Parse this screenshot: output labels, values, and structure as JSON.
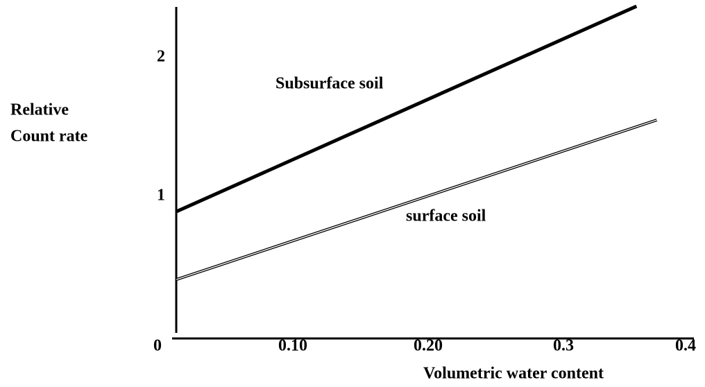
{
  "chart_data": {
    "type": "line",
    "xlabel": "Volumetric water content",
    "ylabel": [
      "Relative",
      "Count rate"
    ],
    "xlim": [
      0,
      0.4
    ],
    "xticks": [
      0,
      {
        "value": 0.1,
        "label": "0.10"
      },
      {
        "value": 0.2,
        "label": "0.20"
      },
      0.3,
      0.4
    ],
    "ylim": [
      0,
      2.4
    ],
    "yticks": [
      1,
      2
    ],
    "grid": false,
    "series": [
      {
        "name": "Subsurface soil",
        "color": "#000000",
        "style": "thick",
        "x": [
          0.014,
          0.354
        ],
        "values": [
          0.85,
          2.33
        ]
      },
      {
        "name": "surface soil",
        "color": "#000000",
        "style": "double",
        "x": [
          0.014,
          0.369
        ],
        "values": [
          0.36,
          1.51
        ]
      }
    ]
  }
}
